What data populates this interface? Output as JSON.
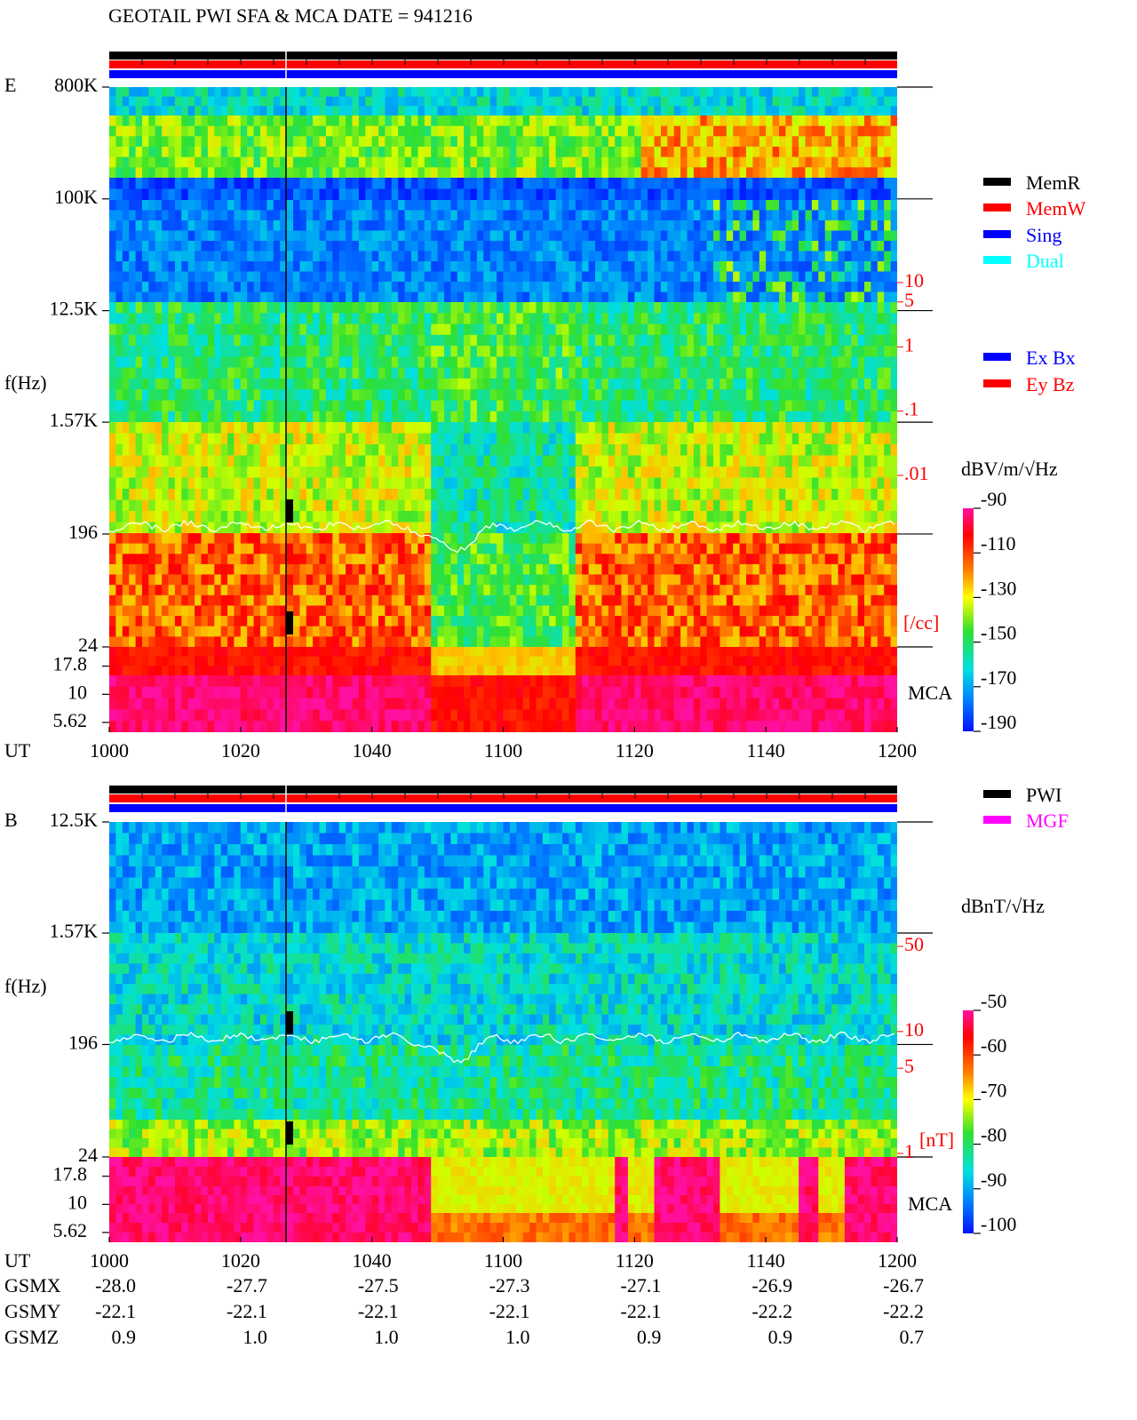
{
  "title": "GEOTAIL  PWI SFA & MCA   DATE = 941216",
  "chart_data": [
    {
      "type": "spectrogram",
      "panel_label": "E",
      "ylabel": "f(Hz)",
      "xlabel": "UT",
      "yscale": "log",
      "ylim": [
        24,
        800000
      ],
      "yticks": [
        {
          "value": 800000,
          "label": "800K"
        },
        {
          "value": 100000,
          "label": "100K"
        },
        {
          "value": 12500,
          "label": "12.5K"
        },
        {
          "value": 1570,
          "label": "1.57K"
        },
        196,
        24
      ],
      "mca_label": "MCA",
      "mca_ylim": [
        4.6,
        26.4
      ],
      "mca_yticks": [
        17.8,
        10,
        5.62
      ],
      "categories": [
        "1000",
        "1020",
        "1040",
        "1100",
        "1120",
        "1140",
        "1200"
      ],
      "density_label": "[/cc]",
      "density_lim": [
        0.01,
        10
      ],
      "density_ticks": [
        10,
        5,
        1,
        {
          "value": 0.1,
          "label": ".1"
        },
        {
          "value": 0.01,
          "label": ".01"
        }
      ],
      "colorbar": {
        "label": "dBV/m/√Hz",
        "lim": [
          -190,
          -90
        ],
        "ticks": [
          -90,
          -110,
          -130,
          -150,
          -170,
          -190
        ]
      },
      "legend": [
        {
          "name": "MemR",
          "color": "#000000"
        },
        {
          "name": "MemW",
          "color": "#ff0000"
        },
        {
          "name": "Sing",
          "color": "#0000ff"
        },
        {
          "name": "Dual",
          "color": "#00ffff"
        }
      ],
      "legend2": [
        {
          "name": "Ex Bx",
          "color": "#0000ff"
        },
        {
          "name": "Ey Bz",
          "color": "#ff0000"
        }
      ]
    },
    {
      "type": "spectrogram",
      "panel_label": "B",
      "ylabel": "f(Hz)",
      "xlabel": "UT",
      "yscale": "log",
      "ylim": [
        24,
        12500
      ],
      "yticks": [
        {
          "value": 12500,
          "label": "12.5K"
        },
        {
          "value": 1570,
          "label": "1.57K"
        },
        196,
        24
      ],
      "mca_label": "MCA",
      "mca_ylim": [
        4.6,
        26.4
      ],
      "mca_yticks": [
        17.8,
        10,
        5.62
      ],
      "categories": [
        "1000",
        "1020",
        "1040",
        "1100",
        "1120",
        "1140",
        "1200"
      ],
      "density_label": "[nT]",
      "density_lim": [
        1,
        50
      ],
      "density_ticks": [
        50,
        10,
        5,
        1
      ],
      "colorbar": {
        "label": "dBnT/√Hz",
        "lim": [
          -100,
          -50
        ],
        "ticks": [
          -50,
          -60,
          -70,
          -80,
          -90,
          -100
        ]
      },
      "legend": [
        {
          "name": "PWI",
          "color": "#000000"
        },
        {
          "name": "MGF",
          "color": "#ff00ff"
        }
      ]
    }
  ],
  "orbit": [
    {
      "name": "GSMX",
      "values": [
        "-28.0",
        "-27.7",
        "-27.5",
        "-27.3",
        "-27.1",
        "-26.9",
        "-26.7"
      ]
    },
    {
      "name": "GSMY",
      "values": [
        "-22.1",
        "-22.1",
        "-22.1",
        "-22.1",
        "-22.1",
        "-22.2",
        "-22.2"
      ]
    },
    {
      "name": "GSMZ",
      "values": [
        "0.9",
        "1.0",
        "1.0",
        "1.0",
        "0.9",
        "0.9",
        "0.7"
      ]
    }
  ]
}
